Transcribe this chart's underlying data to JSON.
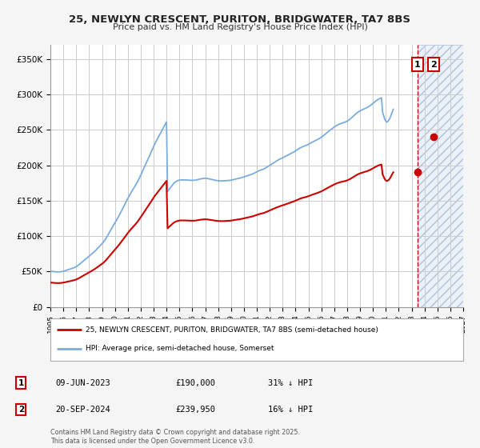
{
  "title1": "25, NEWLYN CRESCENT, PURITON, BRIDGWATER, TA7 8BS",
  "title2": "Price paid vs. HM Land Registry's House Price Index (HPI)",
  "ylim": [
    0,
    370000
  ],
  "xlim_start": 1995.0,
  "xlim_end": 2027.0,
  "yticks": [
    0,
    50000,
    100000,
    150000,
    200000,
    250000,
    300000,
    350000
  ],
  "ytick_labels": [
    "£0",
    "£50K",
    "£100K",
    "£150K",
    "£200K",
    "£250K",
    "£300K",
    "£350K"
  ],
  "xticks": [
    1995,
    1996,
    1997,
    1998,
    1999,
    2000,
    2001,
    2002,
    2003,
    2004,
    2005,
    2006,
    2007,
    2008,
    2009,
    2010,
    2011,
    2012,
    2013,
    2014,
    2015,
    2016,
    2017,
    2018,
    2019,
    2020,
    2021,
    2022,
    2023,
    2024,
    2025,
    2026,
    2027
  ],
  "background_color": "#f5f5f5",
  "plot_bg_color": "#ffffff",
  "grid_color": "#cccccc",
  "red_color": "#cc0000",
  "blue_color": "#7aace0",
  "t1_x": 2023.44,
  "t1_y": 190000,
  "t2_x": 2024.72,
  "t2_y": 239950,
  "shade_start": 2023.44,
  "shade_end": 2027.0,
  "legend_line1": "25, NEWLYN CRESCENT, PURITON, BRIDGWATER, TA7 8BS (semi-detached house)",
  "legend_line2": "HPI: Average price, semi-detached house, Somerset",
  "note1_num": "1",
  "note1_date": "09-JUN-2023",
  "note1_price": "£190,000",
  "note1_hpi": "31% ↓ HPI",
  "note2_num": "2",
  "note2_date": "20-SEP-2024",
  "note2_price": "£239,950",
  "note2_hpi": "16% ↓ HPI",
  "footer": "Contains HM Land Registry data © Crown copyright and database right 2025.\nThis data is licensed under the Open Government Licence v3.0.",
  "hpi_data_y": [
    50500,
    50200,
    50000,
    49800,
    49600,
    49500,
    49400,
    49300,
    49400,
    49500,
    49700,
    50000,
    50300,
    50700,
    51200,
    51700,
    52200,
    52700,
    53200,
    53700,
    54200,
    54700,
    55300,
    56000,
    56800,
    57800,
    58900,
    60100,
    61400,
    62700,
    64000,
    65300,
    66600,
    67800,
    69000,
    70200,
    71500,
    72800,
    74100,
    75400,
    76700,
    78100,
    79600,
    81200,
    82800,
    84400,
    86000,
    87600,
    89200,
    91000,
    93000,
    95200,
    97600,
    100100,
    102700,
    105400,
    108100,
    110800,
    113500,
    116100,
    118600,
    121100,
    123700,
    126400,
    129200,
    132100,
    135000,
    138000,
    141000,
    144100,
    147200,
    150200,
    153100,
    155900,
    158600,
    161200,
    163700,
    166100,
    168500,
    171000,
    173600,
    176400,
    179400,
    182600,
    185900,
    189300,
    192700,
    196100,
    199400,
    202700,
    206000,
    209400,
    212900,
    216400,
    219900,
    223300,
    226600,
    229700,
    232700,
    235600,
    238400,
    241200,
    244100,
    246900,
    249700,
    252600,
    255500,
    258400,
    261300,
    163000,
    165000,
    167000,
    169000,
    171000,
    173000,
    175000,
    176000,
    177000,
    178000,
    178500,
    179000,
    179200,
    179300,
    179300,
    179300,
    179200,
    179100,
    179000,
    178900,
    178800,
    178700,
    178600,
    178600,
    178700,
    178800,
    179000,
    179300,
    179700,
    180100,
    180500,
    180800,
    181100,
    181300,
    181500,
    181600,
    181500,
    181300,
    181000,
    180700,
    180300,
    180000,
    179600,
    179200,
    178900,
    178600,
    178300,
    178100,
    178000,
    177900,
    177800,
    177800,
    177900,
    178000,
    178100,
    178200,
    178300,
    178400,
    178600,
    178900,
    179200,
    179600,
    180000,
    180400,
    180700,
    181000,
    181300,
    181700,
    182100,
    182500,
    183000,
    183500,
    184000,
    184500,
    185000,
    185500,
    186000,
    186500,
    187000,
    187600,
    188300,
    189100,
    189900,
    190700,
    191500,
    192200,
    192800,
    193300,
    193800,
    194400,
    195100,
    196000,
    196900,
    197900,
    198900,
    199900,
    200800,
    201700,
    202700,
    203700,
    204700,
    205700,
    206600,
    207500,
    208300,
    209100,
    209800,
    210500,
    211200,
    212000,
    212800,
    213600,
    214400,
    215200,
    216000,
    216800,
    217600,
    218400,
    219200,
    220200,
    221200,
    222200,
    223200,
    224200,
    225000,
    225700,
    226300,
    226800,
    227400,
    228000,
    228700,
    229500,
    230300,
    231200,
    232100,
    232900,
    233700,
    234400,
    235100,
    235900,
    236700,
    237600,
    238500,
    239500,
    240600,
    241800,
    243100,
    244400,
    245600,
    246800,
    247900,
    249100,
    250300,
    251500,
    252700,
    253900,
    254900,
    255900,
    256700,
    257500,
    258200,
    258800,
    259300,
    259800,
    260300,
    260800,
    261500,
    262200,
    263100,
    264200,
    265400,
    266800,
    268200,
    269600,
    271000,
    272400,
    273700,
    274800,
    275800,
    276700,
    277500,
    278200,
    278900,
    279500,
    280200,
    280900,
    281700,
    282600,
    283600,
    284700,
    285900,
    287200,
    288500,
    289800,
    291000,
    292100,
    293100,
    293900,
    294600,
    295200,
    275000,
    270000,
    265000,
    262000,
    261000,
    262000,
    264000,
    267000,
    271000,
    275500,
    279000
  ]
}
